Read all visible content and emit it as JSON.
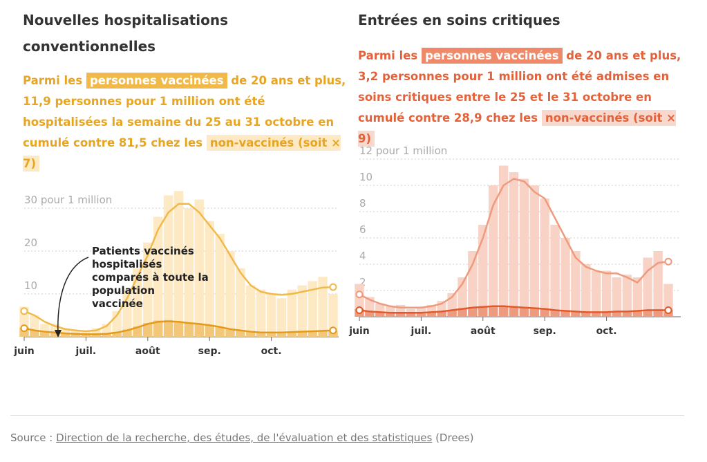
{
  "chart_data": [
    {
      "type": "combo",
      "title": "Nouvelles hospitalisations conventionnelles",
      "subtitle": [
        "Parmi les ",
        "personnes vaccinées",
        " de 20 ans et plus, 11,9 personnes pour 1 million ont été hospitalisées la semaine du 25 au 31 octobre en cumulé contre 81,5 chez les ",
        "non-vaccinés (soit × 7)"
      ],
      "annotation": "Patients vaccinés hospitalisés comparés à toute la population vaccinée",
      "categories": [
        "juin",
        null,
        null,
        null,
        null,
        null,
        "juil.",
        null,
        null,
        null,
        null,
        null,
        "août",
        null,
        null,
        null,
        null,
        null,
        "sep.",
        null,
        null,
        null,
        null,
        null,
        "oct.",
        null,
        null,
        null,
        null,
        null,
        null
      ],
      "ylim": [
        0,
        35
      ],
      "yticks": [
        10,
        20,
        {
          "value": 30,
          "label": "30 pour 1 million"
        }
      ],
      "grid": true,
      "series": [
        {
          "style": "bar",
          "color": "#fde9c4",
          "values": [
            7,
            5,
            3,
            3,
            2,
            1.5,
            1.5,
            2,
            3,
            6,
            11,
            16,
            22,
            28,
            33,
            34,
            30,
            32,
            27,
            24,
            20,
            16,
            12,
            11,
            10,
            9,
            11,
            12,
            13,
            14,
            10
          ]
        },
        {
          "style": "line",
          "color": "#f0b94a",
          "values": [
            6,
            5,
            3.5,
            2.5,
            1.8,
            1.5,
            1.3,
            1.5,
            2.5,
            5,
            9,
            14,
            19,
            25,
            29,
            31,
            31,
            29,
            26,
            23,
            19,
            15,
            12,
            10.5,
            10,
            9.8,
            10,
            10.5,
            11,
            11.5,
            11.6
          ]
        },
        {
          "style": "bar",
          "color": "#f3c77a",
          "values": [
            2.2,
            1.6,
            1.1,
            1,
            0.9,
            0.7,
            0.6,
            0.7,
            0.8,
            1.1,
            1.7,
            2.4,
            3.2,
            3.8,
            3.9,
            3.4,
            3.3,
            2.9,
            2.8,
            2.2,
            1.9,
            1.4,
            1.3,
            1,
            0.9,
            1.1,
            1.2,
            1.1,
            1.4,
            1.5,
            1.3
          ]
        },
        {
          "style": "line",
          "color": "#e39a1a",
          "values": [
            2,
            1.5,
            1.2,
            1,
            0.8,
            0.7,
            0.6,
            0.6,
            0.7,
            1,
            1.5,
            2.2,
            3,
            3.5,
            3.6,
            3.5,
            3.2,
            3,
            2.7,
            2.3,
            1.8,
            1.5,
            1.2,
            1,
            1,
            1,
            1.1,
            1.2,
            1.3,
            1.4,
            1.5
          ]
        }
      ]
    },
    {
      "type": "combo",
      "title": "Entrées en soins critiques",
      "subtitle": [
        "Parmi les ",
        "personnes vaccinées",
        " de 20 ans et plus, 3,2 personnes pour 1 million ont été admises en soins critiques entre le 25 et le 31 octobre en cumulé contre 28,9 chez les ",
        "non-vaccinés (soit × 9)"
      ],
      "categories": [
        "juin",
        null,
        null,
        null,
        null,
        null,
        "juil.",
        null,
        null,
        null,
        null,
        null,
        "août",
        null,
        null,
        null,
        null,
        null,
        "sep.",
        null,
        null,
        null,
        null,
        null,
        "oct.",
        null,
        null,
        null,
        null,
        null,
        null
      ],
      "ylim": [
        0,
        12
      ],
      "yticks": [
        2,
        4,
        6,
        8,
        10,
        {
          "value": 12,
          "label": "12 pour 1 million"
        }
      ],
      "grid": true,
      "series": [
        {
          "style": "bar",
          "color": "#f8d2c4",
          "values": [
            2.5,
            1.5,
            1,
            0.8,
            0.9,
            0.6,
            0.7,
            0.9,
            1.2,
            1.8,
            3,
            5,
            7,
            10,
            11.5,
            11,
            10.5,
            10,
            9,
            7,
            6,
            5,
            4,
            3.5,
            3.5,
            3,
            3.2,
            3,
            4.5,
            5,
            2.5
          ]
        },
        {
          "style": "line",
          "color": "#ee9a7e",
          "values": [
            1.7,
            1.3,
            1,
            0.8,
            0.7,
            0.7,
            0.7,
            0.8,
            1,
            1.5,
            2.5,
            4,
            6,
            8.5,
            10,
            10.5,
            10.3,
            9.5,
            9,
            7.5,
            6,
            4.5,
            3.8,
            3.5,
            3.3,
            3.3,
            3,
            2.6,
            3.5,
            4.1,
            4.2
          ]
        },
        {
          "style": "bar",
          "color": "#ee9a7e",
          "values": [
            0.6,
            0.4,
            0.3,
            0.3,
            0.35,
            0.3,
            0.25,
            0.35,
            0.45,
            0.5,
            0.65,
            0.7,
            0.8,
            0.85,
            0.8,
            0.8,
            0.7,
            0.7,
            0.6,
            0.5,
            0.5,
            0.4,
            0.35,
            0.3,
            0.4,
            0.4,
            0.45,
            0.4,
            0.5,
            0.55,
            0.5
          ]
        },
        {
          "style": "line",
          "color": "#e05a2b",
          "values": [
            0.5,
            0.4,
            0.35,
            0.3,
            0.3,
            0.3,
            0.3,
            0.35,
            0.4,
            0.5,
            0.6,
            0.7,
            0.75,
            0.8,
            0.8,
            0.75,
            0.7,
            0.65,
            0.6,
            0.5,
            0.45,
            0.4,
            0.35,
            0.35,
            0.35,
            0.4,
            0.4,
            0.45,
            0.5,
            0.5,
            0.5
          ]
        }
      ]
    }
  ],
  "source": {
    "prefix": "Source : ",
    "link": "Direction de la recherche, des études, de l'évaluation et des statistiques",
    "suffix": " (Drees)"
  }
}
